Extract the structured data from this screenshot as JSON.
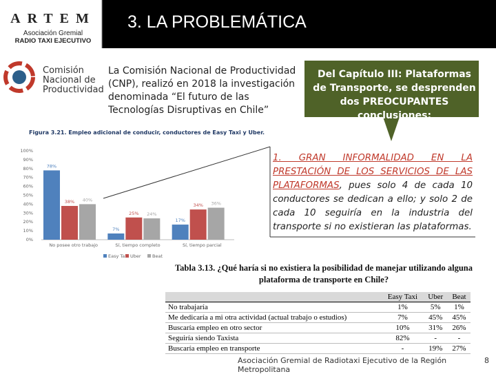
{
  "header": {
    "logo": [
      "ARTEM",
      "Asociación Gremial",
      "RADIO TAXI EJECUTIVO"
    ],
    "title": "3. LA PROBLEMÁTICA"
  },
  "cnp_logo": [
    "Comisión",
    "Nacional de",
    "Productividad"
  ],
  "intro": "La Comisión Nacional de Productividad (CNP), realizó en 2018 la investigación denominada “El futuro de las Tecnologías Disruptivas en Chile”",
  "callout": "Del Capítulo III: Plataformas de Transporte, se desprenden dos PREOCUPANTES conclusiones:",
  "conclusion": {
    "highlight": "1. GRAN INFORMALIDAD EN LA PRESTACIÓN DE LOS SERVICIOS DE LAS PLATAFORMAS",
    "text": ", pues solo 4 de cada 10 conductores se dedican a ello; y solo 2 de cada 10 seguiría en la industria del transporte si no existieran las plataformas."
  },
  "chart_data": {
    "type": "bar",
    "title": "Figura 3.21. Empleo adicional de conducir, conductores de Easy Taxi y Uber.",
    "categories": [
      "No posee otro trabajo",
      "Sí, tiempo completo",
      "Sí, tiempo parcial"
    ],
    "series": [
      {
        "name": "Easy Taxi",
        "color": "#4f81bd",
        "values": [
          78,
          7,
          17
        ],
        "value_labels": [
          "78%",
          "7%",
          "17%"
        ]
      },
      {
        "name": "Uber",
        "color": "#c0504d",
        "values": [
          38,
          25,
          34
        ],
        "value_labels": [
          "38%",
          "25%",
          "34%"
        ]
      },
      {
        "name": "Beat",
        "color": "#a6a6a6",
        "values": [
          40,
          24,
          36
        ],
        "value_labels": [
          "40%",
          "24%",
          "36%"
        ]
      }
    ],
    "ylim": [
      0,
      100
    ],
    "yticks": [
      {
        "value": 0,
        "label": "0%"
      },
      {
        "value": 10,
        "label": "10%"
      },
      {
        "value": 20,
        "label": "20%"
      },
      {
        "value": 30,
        "label": "30%"
      },
      {
        "value": 40,
        "label": "40%"
      },
      {
        "value": 50,
        "label": "50%"
      },
      {
        "value": 60,
        "label": "60%"
      },
      {
        "value": 70,
        "label": "70%"
      },
      {
        "value": 80,
        "label": "80%"
      },
      {
        "value": 90,
        "label": "90%"
      },
      {
        "value": 100,
        "label": "100%"
      }
    ],
    "grid": false,
    "legend": "bottom"
  },
  "table": {
    "caption": "Tabla 3.13. ¿Qué haría si no existiera la posibilidad de manejar utilizando alguna plataforma de transporte en Chile?",
    "header": [
      "Easy Taxi",
      "Uber",
      "Beat"
    ],
    "rows": [
      [
        "No trabajaría",
        "1%",
        "5%",
        "1%"
      ],
      [
        "Me dedicaría a mi otra actividad (actual trabajo o estudios)",
        "7%",
        "45%",
        "45%"
      ],
      [
        "Buscaría empleo en otro sector",
        "10%",
        "31%",
        "26%"
      ],
      [
        "Seguiría siendo Taxista",
        "82%",
        "-",
        "-"
      ],
      [
        "Buscaría empleo en transporte",
        "-",
        "19%",
        "27%"
      ]
    ]
  },
  "footer": {
    "text": "Asociación Gremial de Radiotaxi Ejecutivo de la Región Metropolitana",
    "page": "8"
  }
}
